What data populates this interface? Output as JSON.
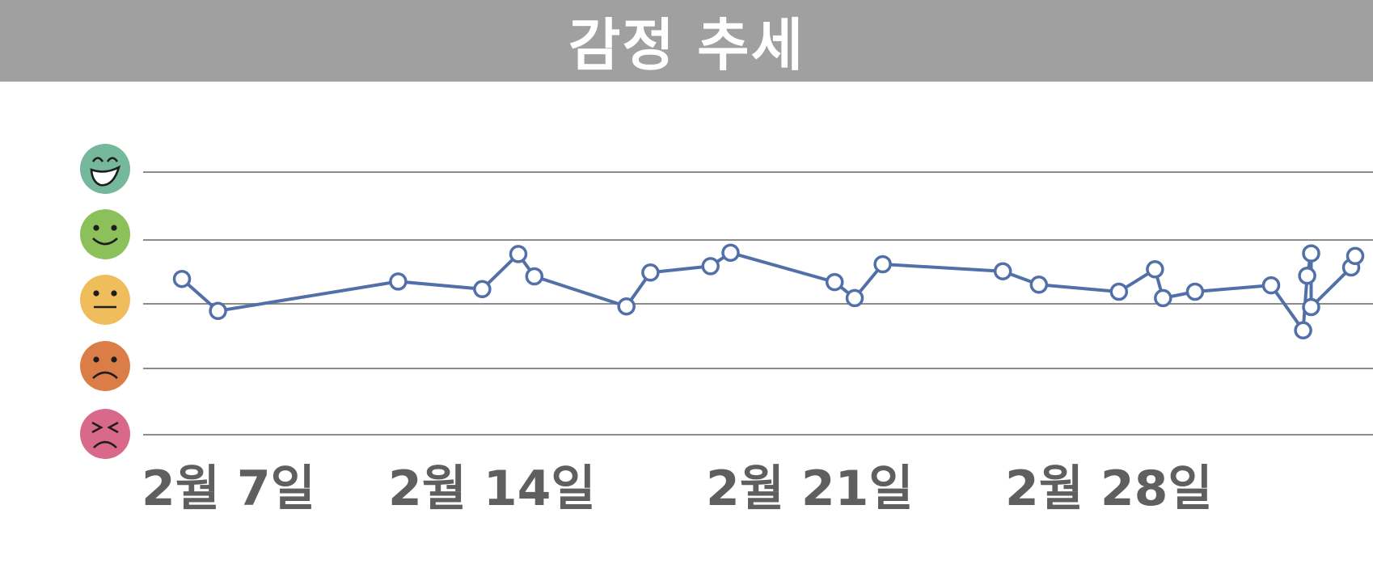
{
  "title": "감정 추세",
  "chart_data": {
    "type": "line",
    "title": "감정 추세",
    "xlabel": "",
    "ylabel": "",
    "grid": true,
    "y_levels": [
      {
        "value": 1,
        "icon": "very-unhappy-face-icon",
        "color": "#d9698a"
      },
      {
        "value": 2,
        "icon": "sad-face-icon",
        "color": "#db7d47"
      },
      {
        "value": 3,
        "icon": "neutral-face-icon",
        "color": "#efbd5c"
      },
      {
        "value": 4,
        "icon": "smiling-face-icon",
        "color": "#8bc05a"
      },
      {
        "value": 5,
        "icon": "grinning-face-icon",
        "color": "#76b89c"
      }
    ],
    "ylim": [
      1,
      5
    ],
    "x_ticks": [
      {
        "label": "2월 7일",
        "day": 7
      },
      {
        "label": "2월 14일",
        "day": 14
      },
      {
        "label": "2월 21일",
        "day": 21
      },
      {
        "label": "2월 28일",
        "day": 28
      }
    ],
    "xlim_days": [
      6.9,
      38.0
    ],
    "series": [
      {
        "color": "#5270a8",
        "points": [
          {
            "day": 8.1,
            "mood": 3.39
          },
          {
            "day": 9.0,
            "mood": 2.89
          },
          {
            "day": 13.5,
            "mood": 3.35
          },
          {
            "day": 15.6,
            "mood": 3.23
          },
          {
            "day": 16.5,
            "mood": 3.78
          },
          {
            "day": 16.9,
            "mood": 3.43
          },
          {
            "day": 19.2,
            "mood": 2.96
          },
          {
            "day": 19.8,
            "mood": 3.49
          },
          {
            "day": 21.3,
            "mood": 3.59
          },
          {
            "day": 21.8,
            "mood": 3.8
          },
          {
            "day": 24.4,
            "mood": 3.34
          },
          {
            "day": 24.9,
            "mood": 3.09
          },
          {
            "day": 25.6,
            "mood": 3.62
          },
          {
            "day": 28.6,
            "mood": 3.51
          },
          {
            "day": 29.5,
            "mood": 3.3
          },
          {
            "day": 31.5,
            "mood": 3.19
          },
          {
            "day": 32.4,
            "mood": 3.54
          },
          {
            "day": 32.6,
            "mood": 3.09
          },
          {
            "day": 33.4,
            "mood": 3.19
          },
          {
            "day": 35.3,
            "mood": 3.29
          },
          {
            "day": 36.1,
            "mood": 2.59
          },
          {
            "day": 36.2,
            "mood": 3.44
          },
          {
            "day": 36.3,
            "mood": 3.79
          },
          {
            "day": 36.3,
            "mood": 2.95
          },
          {
            "day": 37.3,
            "mood": 3.57
          },
          {
            "day": 37.4,
            "mood": 3.75
          }
        ]
      }
    ]
  }
}
